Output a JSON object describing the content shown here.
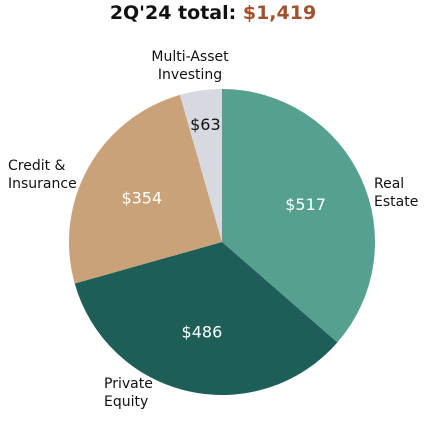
{
  "chart_data": {
    "type": "pie",
    "title_prefix": "2Q'24 total:",
    "title_total": "$1,419",
    "slices": [
      {
        "label": [
          "Real",
          "Estate"
        ],
        "value": 517,
        "value_label": "$517",
        "color": "#55a08e",
        "value_text_color": "#ffffff"
      },
      {
        "label": [
          "Private",
          "Equity"
        ],
        "value": 486,
        "value_label": "$486",
        "color": "#1e5e58",
        "value_text_color": "#ffffff"
      },
      {
        "label": [
          "Credit &",
          "Insurance"
        ],
        "value": 354,
        "value_label": "$354",
        "color": "#c9a27a",
        "value_text_color": "#ffffff"
      },
      {
        "label": [
          "Multi-Asset",
          "Investing"
        ],
        "value": 63,
        "value_label": "$63",
        "color": "#d6d9e0",
        "value_text_color": "#111111"
      }
    ],
    "start_at": "top",
    "direction": "clockwise"
  }
}
